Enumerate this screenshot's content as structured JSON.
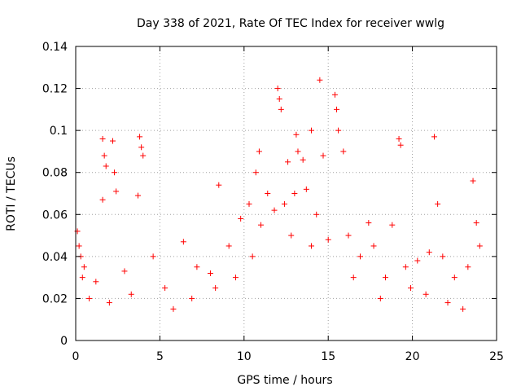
{
  "chart_data": {
    "type": "scatter",
    "title": "Day 338 of 2021, Rate Of TEC Index for receiver wwlg",
    "xlabel": "GPS time / hours",
    "ylabel": "ROTI / TECUs",
    "xlim": [
      0,
      25
    ],
    "ylim": [
      0,
      0.14
    ],
    "xticks": [
      0,
      5,
      10,
      15,
      20,
      25
    ],
    "yticks": [
      0,
      0.02,
      0.04,
      0.06,
      0.08,
      0.1,
      0.12,
      0.14
    ],
    "xtick_labels": [
      "0",
      "5",
      "10",
      "15",
      "20",
      "25"
    ],
    "ytick_labels": [
      "0",
      "0.02",
      "0.04",
      "0.06",
      "0.08",
      "0.1",
      "0.12",
      "0.14"
    ],
    "grid": true,
    "marker": "+",
    "marker_color": "#ff0000",
    "series": [
      {
        "name": "ROTI",
        "x": [
          0.1,
          0.2,
          0.3,
          0.5,
          1.6,
          1.7,
          1.8,
          2.2,
          2.3,
          3.8,
          3.9,
          4.0,
          1.6,
          2.4,
          3.7,
          8.5,
          10.3,
          10.7,
          10.9,
          11.4,
          12.0,
          12.1,
          12.2,
          12.6,
          13.1,
          13.2,
          13.5,
          14.0,
          14.5,
          14.7,
          15.4,
          15.5,
          15.6,
          15.9,
          17.4,
          18.8,
          19.2,
          19.3,
          21.3,
          21.5,
          23.6,
          23.8,
          24.0,
          0.4,
          1.2,
          2.9,
          4.6,
          5.3,
          6.4,
          7.2,
          8.0,
          9.1,
          9.8,
          11.0,
          11.8,
          12.4,
          13.0,
          13.7,
          14.3,
          15.0,
          16.2,
          16.9,
          17.7,
          18.4,
          19.6,
          20.3,
          21.0,
          21.8,
          22.5,
          23.3,
          0.8,
          2.0,
          3.3,
          5.8,
          6.9,
          8.3,
          9.5,
          10.5,
          12.8,
          14.0,
          16.5,
          18.1,
          19.9,
          20.8,
          22.1,
          23.0
        ],
        "y": [
          0.052,
          0.045,
          0.04,
          0.035,
          0.096,
          0.088,
          0.083,
          0.095,
          0.08,
          0.097,
          0.092,
          0.088,
          0.067,
          0.071,
          0.069,
          0.074,
          0.065,
          0.08,
          0.09,
          0.07,
          0.12,
          0.115,
          0.11,
          0.085,
          0.098,
          0.09,
          0.086,
          0.1,
          0.124,
          0.088,
          0.117,
          0.11,
          0.1,
          0.09,
          0.056,
          0.055,
          0.096,
          0.093,
          0.097,
          0.065,
          0.076,
          0.056,
          0.045,
          0.03,
          0.028,
          0.033,
          0.04,
          0.025,
          0.047,
          0.035,
          0.032,
          0.045,
          0.058,
          0.055,
          0.062,
          0.065,
          0.07,
          0.072,
          0.06,
          0.048,
          0.05,
          0.04,
          0.045,
          0.03,
          0.035,
          0.038,
          0.042,
          0.04,
          0.03,
          0.035,
          0.02,
          0.018,
          0.022,
          0.015,
          0.02,
          0.025,
          0.03,
          0.04,
          0.05,
          0.045,
          0.03,
          0.02,
          0.025,
          0.022,
          0.018,
          0.015
        ]
      }
    ]
  }
}
